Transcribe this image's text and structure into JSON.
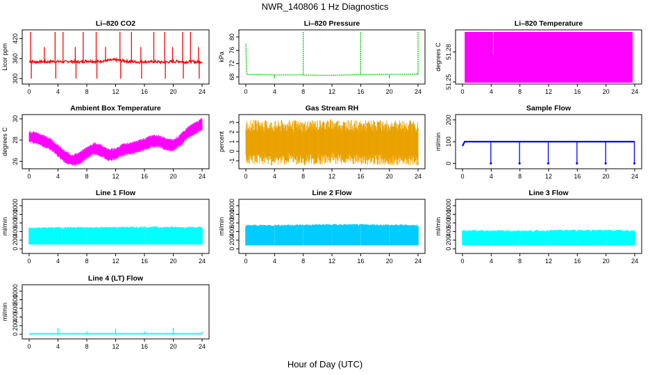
{
  "title": "NWR_140806  1 Hz Diagnostics",
  "xlabel": "Hour of Day (UTC)",
  "chart_data": [
    {
      "type": "line",
      "title": "Li–820 CO2",
      "ylabel": "Licor ppm",
      "color": "#ff0000",
      "xlim": [
        0,
        24
      ],
      "xticks": [
        0,
        4,
        8,
        12,
        16,
        20,
        24
      ],
      "ylim": [
        290,
        440
      ],
      "yticks": [
        300,
        360,
        420
      ],
      "x": [
        0,
        0.8,
        1.6,
        2.4,
        3.2,
        4,
        4.8,
        5.6,
        6.4,
        7.2,
        8,
        8.8,
        9.6,
        10.4,
        11.2,
        12,
        12.8,
        13.6,
        14.4,
        15.2,
        16,
        16.8,
        17.6,
        18.4,
        19.2,
        20,
        20.8,
        21.6,
        22.4,
        23.2,
        24
      ],
      "y": [
        352,
        350,
        351,
        350,
        352,
        351,
        350,
        352,
        351,
        350,
        353,
        352,
        351,
        354,
        355,
        356,
        354,
        352,
        351,
        350,
        351,
        350,
        351,
        349,
        350,
        351,
        352,
        350,
        351,
        350,
        351
      ],
      "spikes": [
        0.2,
        2.1,
        3.6,
        4.7,
        6.4,
        7.5,
        9.3,
        10.6,
        12.6,
        14.2,
        15.5,
        17.3,
        18.8,
        19.9,
        21.3,
        22.4,
        23.5
      ]
    },
    {
      "type": "line",
      "title": "Li–820 Pressure",
      "ylabel": "kPa",
      "color": "#00cc00",
      "xlim": [
        0,
        24
      ],
      "xticks": [
        0,
        4,
        8,
        12,
        16,
        20,
        24
      ],
      "ylim": [
        66.5,
        81.5
      ],
      "yticks": [
        68,
        72,
        76,
        80
      ],
      "x": [
        0,
        0.1,
        0.2,
        2,
        4,
        6,
        8,
        10,
        12,
        14,
        16,
        18,
        20,
        22,
        24
      ],
      "y": [
        78,
        69.5,
        68.7,
        68.7,
        68.6,
        68.6,
        68.6,
        68.5,
        68.5,
        68.6,
        68.7,
        68.7,
        68.8,
        68.8,
        68.9
      ],
      "spikes": [
        8,
        16,
        24
      ]
    },
    {
      "type": "area",
      "title": "Li–820 Temperature",
      "ylabel": "degrees C",
      "color": "#ff00ff",
      "xlim": [
        0,
        24
      ],
      "xticks": [
        0,
        4,
        8,
        12,
        16,
        20,
        24
      ],
      "ylim": [
        51.25,
        51.3
      ],
      "yticks": [
        51.25,
        51.28
      ],
      "x": [
        0,
        24
      ],
      "y": [
        51.3,
        51.3
      ]
    },
    {
      "type": "line",
      "title": "Ambient Box Temperature",
      "ylabel": "degrees C",
      "color": "#ff00ff",
      "xlim": [
        0,
        24
      ],
      "xticks": [
        0,
        4,
        8,
        12,
        16,
        20,
        24
      ],
      "ylim": [
        25.5,
        30.2
      ],
      "yticks": [
        26,
        28,
        30
      ],
      "x": [
        0,
        1,
        2,
        3,
        4,
        5,
        6,
        7,
        8,
        9,
        10,
        11,
        12,
        13,
        14,
        15,
        16,
        17,
        18,
        19,
        20,
        21,
        22,
        23,
        24
      ],
      "y": [
        28.3,
        28.2,
        27.9,
        27.6,
        27.0,
        26.4,
        26.1,
        26.3,
        26.8,
        27.2,
        27.0,
        26.6,
        26.7,
        27.1,
        27.2,
        27.4,
        27.6,
        27.9,
        27.9,
        27.6,
        27.5,
        28.0,
        28.7,
        29.1,
        29.5
      ]
    },
    {
      "type": "line",
      "title": "Gas Stream RH",
      "ylabel": "percent",
      "color": "#ffa500",
      "xlim": [
        0,
        24
      ],
      "xticks": [
        0,
        4,
        8,
        12,
        16,
        20,
        24
      ],
      "ylim": [
        -1.6,
        3.6
      ],
      "yticks": [
        -1,
        0,
        1,
        2,
        3
      ],
      "x": [
        0,
        2,
        4,
        6,
        8,
        10,
        12,
        14,
        16,
        18,
        20,
        22,
        24
      ],
      "y": [
        0.9,
        0.9,
        0.8,
        0.9,
        0.8,
        0.9,
        1.0,
        0.9,
        0.8,
        0.9,
        0.8,
        0.9,
        0.8
      ]
    },
    {
      "type": "line",
      "title": "Sample Flow",
      "ylabel": "ml/min",
      "color": "#0000ff",
      "xlim": [
        0,
        24
      ],
      "xticks": [
        0,
        4,
        8,
        12,
        16,
        20,
        24
      ],
      "ylim": [
        -15,
        215
      ],
      "yticks": [
        0,
        100,
        200
      ],
      "x": [
        0,
        0.3,
        4,
        8,
        12,
        16,
        20,
        24
      ],
      "y": [
        80,
        100,
        100,
        100,
        100,
        100,
        100,
        100
      ],
      "dips": [
        4,
        8,
        12,
        16,
        20,
        24
      ]
    },
    {
      "type": "area",
      "title": "Line 1 Flow",
      "ylabel": "ml/min",
      "color": "#00ffff",
      "xlim": [
        0,
        24
      ],
      "xticks": [
        0,
        4,
        8,
        12,
        16,
        20,
        24
      ],
      "ylim": [
        -60,
        1100
      ],
      "yticks": [
        0,
        200,
        400,
        600,
        800,
        1000
      ],
      "x": [
        0,
        4,
        8,
        12,
        16,
        20,
        24
      ],
      "y": [
        480,
        490,
        490,
        495,
        500,
        500,
        495
      ],
      "low": 100
    },
    {
      "type": "area",
      "title": "Line 2 Flow",
      "ylabel": "ml/min",
      "color": "#00ccff",
      "xlim": [
        0,
        24
      ],
      "xticks": [
        0,
        4,
        8,
        12,
        16,
        20,
        24
      ],
      "ylim": [
        -60,
        1100
      ],
      "yticks": [
        0,
        200,
        400,
        600,
        800,
        1000
      ],
      "x": [
        0,
        4,
        8,
        12,
        16,
        20,
        24
      ],
      "y": [
        540,
        545,
        550,
        560,
        555,
        550,
        545
      ],
      "low": 80
    },
    {
      "type": "area",
      "title": "Line 3 Flow",
      "ylabel": "ml/min",
      "color": "#00ffff",
      "xlim": [
        0,
        24
      ],
      "xticks": [
        0,
        4,
        8,
        12,
        16,
        20,
        24
      ],
      "ylim": [
        -60,
        1100
      ],
      "yticks": [
        0,
        200,
        400,
        600,
        800,
        1000
      ],
      "x": [
        0,
        4,
        8,
        12,
        16,
        20,
        24
      ],
      "y": [
        420,
        420,
        410,
        420,
        430,
        425,
        415
      ],
      "low": 80
    },
    {
      "type": "line",
      "title": "Line 4 (LT) Flow",
      "ylabel": "ml/min",
      "color": "#00ffff",
      "xlim": [
        0,
        24
      ],
      "xticks": [
        0,
        4,
        8,
        12,
        16,
        20,
        24
      ],
      "ylim": [
        -60,
        1100
      ],
      "yticks": [
        0,
        200,
        400,
        600,
        800,
        1000
      ],
      "x": [
        0,
        4,
        8,
        12,
        16,
        20,
        24
      ],
      "y": [
        10,
        10,
        10,
        10,
        10,
        10,
        10
      ],
      "spikes": [
        4,
        8,
        12,
        16,
        20,
        24
      ],
      "spike_values": [
        140,
        60,
        130,
        60,
        150,
        60
      ]
    }
  ]
}
